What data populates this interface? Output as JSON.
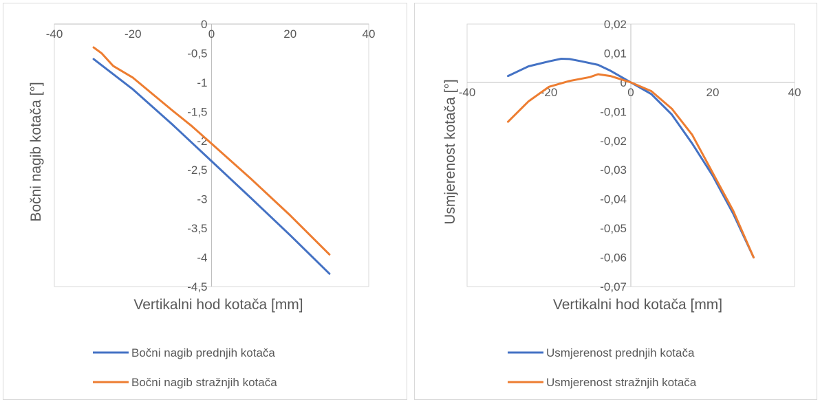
{
  "chart_data": [
    {
      "type": "line",
      "title": "",
      "xlabel": "Vertikalni hod kotača [mm]",
      "ylabel": "Bočni nagib kotača [°]",
      "xlim": [
        -40,
        40
      ],
      "ylim": [
        -4.5,
        0
      ],
      "x_ticks": [
        "-40",
        "-20",
        "0",
        "20",
        "40"
      ],
      "y_ticks": [
        "0",
        "-0,5",
        "-1",
        "-1,5",
        "-2",
        "-2,5",
        "-3",
        "-3,5",
        "-4",
        "-4,5"
      ],
      "grid": "vertical axis through x=0 only",
      "legend_position": "bottom",
      "series": [
        {
          "name": "Bočni nagib prednjih kotača",
          "color": "#4472c4",
          "x": [
            -30,
            -20,
            -10,
            0,
            10,
            20,
            30
          ],
          "y": [
            -0.6,
            -1.12,
            -1.72,
            -2.35,
            -2.98,
            -3.62,
            -4.28
          ]
        },
        {
          "name": "Bočni nagib stražnjih kotača",
          "color": "#ed7d31",
          "x": [
            -30,
            -28,
            -25,
            -20,
            -15,
            -10,
            -5,
            0,
            10,
            20,
            30
          ],
          "y": [
            -0.4,
            -0.5,
            -0.72,
            -0.92,
            -1.2,
            -1.48,
            -1.75,
            -2.05,
            -2.65,
            -3.28,
            -3.95
          ]
        }
      ]
    },
    {
      "type": "line",
      "title": "",
      "xlabel": "Vertikalni hod kotača [mm]",
      "ylabel": "Usmjerenost kotača [°]",
      "xlim": [
        -40,
        40
      ],
      "ylim": [
        -0.07,
        0.02
      ],
      "x_ticks": [
        "-40",
        "-20",
        "0",
        "20",
        "40"
      ],
      "y_ticks": [
        "0,02",
        "0,01",
        "0",
        "-0,01",
        "-0,02",
        "-0,03",
        "-0,04",
        "-0,05",
        "-0,06",
        "-0,07"
      ],
      "grid": "vertical axis through x=0 only",
      "legend_position": "bottom",
      "series": [
        {
          "name": "Usmjerenost prednjih kotača",
          "color": "#4472c4",
          "x": [
            -30,
            -25,
            -20,
            -17,
            -15,
            -12,
            -8,
            -5,
            0,
            5,
            10,
            15,
            20,
            25,
            30
          ],
          "y": [
            0.0022,
            0.0055,
            0.0072,
            0.0081,
            0.008,
            0.0072,
            0.006,
            0.004,
            0.0,
            -0.004,
            -0.011,
            -0.021,
            -0.032,
            -0.045,
            -0.06
          ]
        },
        {
          "name": "Usmjerenost stražnjih kotača",
          "color": "#ed7d31",
          "x": [
            -30,
            -25,
            -20,
            -15,
            -10,
            -8,
            -5,
            0,
            5,
            10,
            15,
            20,
            25,
            30
          ],
          "y": [
            -0.0135,
            -0.0065,
            -0.0015,
            0.0005,
            0.0018,
            0.0028,
            0.0022,
            0.0,
            -0.003,
            -0.009,
            -0.018,
            -0.031,
            -0.044,
            -0.06
          ]
        }
      ]
    }
  ]
}
